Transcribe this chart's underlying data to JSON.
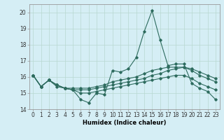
{
  "title": "",
  "xlabel": "Humidex (Indice chaleur)",
  "ylabel": "",
  "bg_color": "#d5eef5",
  "grid_color": "#b8d8d0",
  "line_color": "#2d6b5e",
  "xlim": [
    -0.5,
    23.5
  ],
  "ylim": [
    14,
    20.5
  ],
  "xticks": [
    0,
    1,
    2,
    3,
    4,
    5,
    6,
    7,
    8,
    9,
    10,
    11,
    12,
    13,
    14,
    15,
    16,
    17,
    18,
    19,
    20,
    21,
    22,
    23
  ],
  "yticks": [
    14,
    15,
    16,
    17,
    18,
    19,
    20
  ],
  "line1_x": [
    0,
    1,
    2,
    3,
    4,
    5,
    6,
    7,
    8,
    9,
    10,
    11,
    12,
    13,
    14,
    15,
    16,
    17,
    18,
    19,
    20,
    21,
    22,
    23
  ],
  "line1_y": [
    16.1,
    15.4,
    15.8,
    15.4,
    15.3,
    15.2,
    14.6,
    14.4,
    15.0,
    14.9,
    16.4,
    16.3,
    16.5,
    17.2,
    18.8,
    20.1,
    18.3,
    16.7,
    16.8,
    16.8,
    15.6,
    15.3,
    15.1,
    14.6
  ],
  "line2_x": [
    0,
    1,
    2,
    3,
    4,
    5,
    6,
    7,
    8,
    9,
    10,
    11,
    12,
    13,
    14,
    15,
    16,
    17,
    18,
    19,
    20,
    21,
    22,
    23
  ],
  "line2_y": [
    16.1,
    15.4,
    15.8,
    15.5,
    15.3,
    15.2,
    15.2,
    15.2,
    15.3,
    15.4,
    15.5,
    15.6,
    15.7,
    15.8,
    15.9,
    16.1,
    16.2,
    16.4,
    16.5,
    16.6,
    16.5,
    16.3,
    16.1,
    15.9
  ],
  "line3_x": [
    0,
    1,
    2,
    3,
    4,
    5,
    6,
    7,
    8,
    9,
    10,
    11,
    12,
    13,
    14,
    15,
    16,
    17,
    18,
    19,
    20,
    21,
    22,
    23
  ],
  "line3_y": [
    16.1,
    15.4,
    15.8,
    15.5,
    15.3,
    15.3,
    15.3,
    15.3,
    15.4,
    15.5,
    15.7,
    15.8,
    15.9,
    16.0,
    16.2,
    16.4,
    16.5,
    16.6,
    16.6,
    16.6,
    16.4,
    16.1,
    15.9,
    15.7
  ],
  "line4_x": [
    0,
    1,
    2,
    3,
    4,
    5,
    6,
    7,
    8,
    9,
    10,
    11,
    12,
    13,
    14,
    15,
    16,
    17,
    18,
    19,
    20,
    21,
    22,
    23
  ],
  "line4_y": [
    16.1,
    15.4,
    15.8,
    15.5,
    15.3,
    15.2,
    15.0,
    15.0,
    15.1,
    15.2,
    15.3,
    15.4,
    15.5,
    15.6,
    15.7,
    15.8,
    15.9,
    16.0,
    16.1,
    16.1,
    15.9,
    15.6,
    15.4,
    15.2
  ],
  "tick_fontsize": 5.5,
  "xlabel_fontsize": 6.0,
  "spine_color": "#999999",
  "tick_color": "#333333"
}
